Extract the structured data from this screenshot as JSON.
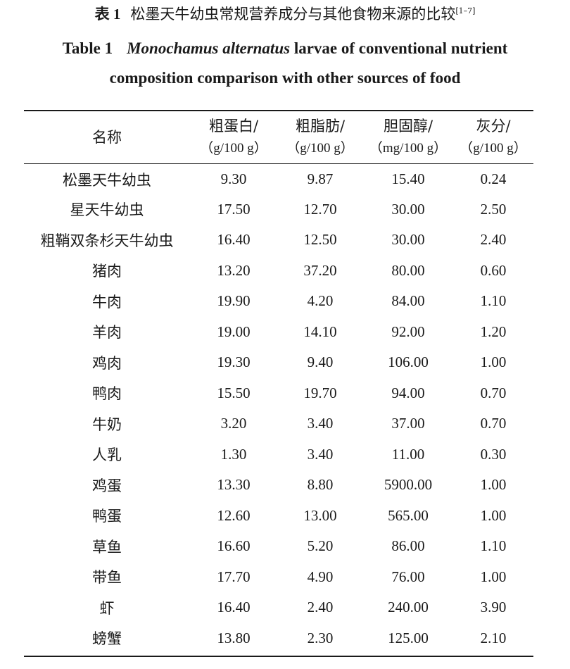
{
  "caption_cn": {
    "number": "表 1",
    "text": "松墨天牛幼虫常规营养成分与其他食物来源的比较",
    "citation": "[1–7]"
  },
  "caption_en": {
    "number": "Table 1",
    "species": "Monochamus alternatus",
    "line1_rest": " larvae of conventional nutrient",
    "line2": "composition comparison with other sources of food"
  },
  "table": {
    "columns": [
      {
        "name": "名称",
        "unit": ""
      },
      {
        "name": "粗蛋白/",
        "unit": "（g/100 g）"
      },
      {
        "name": "粗脂肪/",
        "unit": "（g/100 g）"
      },
      {
        "name": "胆固醇/",
        "unit": "（mg/100 g）"
      },
      {
        "name": "灰分/",
        "unit": "（g/100 g）"
      }
    ],
    "rows": [
      [
        "松墨天牛幼虫",
        "9.30",
        "9.87",
        "15.40",
        "0.24"
      ],
      [
        "星天牛幼虫",
        "17.50",
        "12.70",
        "30.00",
        "2.50"
      ],
      [
        "粗鞘双条杉天牛幼虫",
        "16.40",
        "12.50",
        "30.00",
        "2.40"
      ],
      [
        "猪肉",
        "13.20",
        "37.20",
        "80.00",
        "0.60"
      ],
      [
        "牛肉",
        "19.90",
        "4.20",
        "84.00",
        "1.10"
      ],
      [
        "羊肉",
        "19.00",
        "14.10",
        "92.00",
        "1.20"
      ],
      [
        "鸡肉",
        "19.30",
        "9.40",
        "106.00",
        "1.00"
      ],
      [
        "鸭肉",
        "15.50",
        "19.70",
        "94.00",
        "0.70"
      ],
      [
        "牛奶",
        "3.20",
        "3.40",
        "37.00",
        "0.70"
      ],
      [
        "人乳",
        "1.30",
        "3.40",
        "11.00",
        "0.30"
      ],
      [
        "鸡蛋",
        "13.30",
        "8.80",
        "5900.00",
        "1.00"
      ],
      [
        "鸭蛋",
        "12.60",
        "13.00",
        "565.00",
        "1.00"
      ],
      [
        "草鱼",
        "16.60",
        "5.20",
        "86.00",
        "1.10"
      ],
      [
        "带鱼",
        "17.70",
        "4.90",
        "76.00",
        "1.00"
      ],
      [
        "虾",
        "16.40",
        "2.40",
        "240.00",
        "3.90"
      ],
      [
        "螃蟹",
        "13.80",
        "2.30",
        "125.00",
        "2.10"
      ]
    ]
  }
}
